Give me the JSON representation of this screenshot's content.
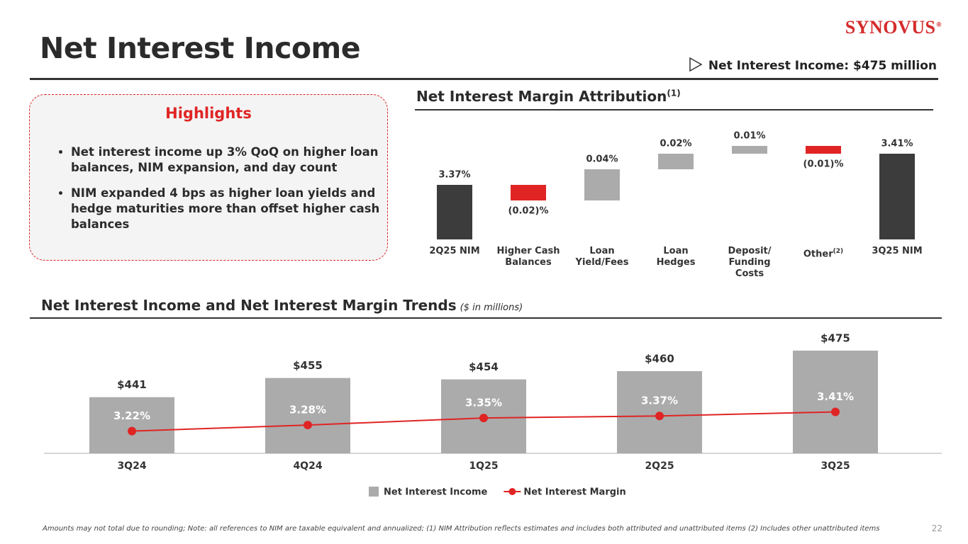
{
  "header": {
    "title": "Net Interest Income",
    "logo": "SYNOVUS",
    "logo_mark": "®",
    "callout": "Net Interest Income: $475 million"
  },
  "highlights": {
    "title": "Highlights",
    "bullets": [
      "Net interest income up 3% QoQ on higher loan balances, NIM expansion, and day count",
      "NIM expanded 4 bps as higher loan yields and hedge maturities more than offset higher cash balances"
    ]
  },
  "chart_data": [
    {
      "type": "waterfall",
      "title": "Net Interest Margin Attribution",
      "title_note": "(1)",
      "categories": [
        "2Q25 NIM",
        "Higher Cash\nBalances",
        "Loan\nYield/Fees",
        "Loan\nHedges",
        "Deposit/\nFunding\nCosts",
        "Other",
        "3Q25 NIM"
      ],
      "category_notes": {
        "5": "(2)"
      },
      "measure": [
        "absolute",
        "relative",
        "relative",
        "relative",
        "relative",
        "relative",
        "absolute"
      ],
      "values": [
        3.37,
        -0.02,
        0.04,
        0.02,
        0.01,
        -0.01,
        3.41
      ],
      "value_labels": [
        "3.37%",
        "(0.02)%",
        "0.04%",
        "0.02%",
        "0.01%",
        "(0.01)%",
        "3.41%"
      ],
      "total_color": "#3c3c3c",
      "increase_color": "#ababab",
      "decrease_color": "#e02424",
      "ylim": [
        3.3,
        3.43
      ]
    },
    {
      "type": "combo",
      "title": "Net Interest Income and Net Interest Margin Trends",
      "subtitle": "($ in millions)",
      "categories": [
        "3Q24",
        "4Q24",
        "1Q25",
        "2Q25",
        "3Q25"
      ],
      "series": [
        {
          "name": "Net Interest Income",
          "type": "bar",
          "color": "#ababab",
          "values": [
            441,
            455,
            454,
            460,
            475
          ],
          "value_labels": [
            "$441",
            "$455",
            "$454",
            "$460",
            "$475"
          ]
        },
        {
          "name": "Net Interest Margin",
          "type": "line",
          "axis": "y2",
          "color": "#e02424",
          "values": [
            3.22,
            3.28,
            3.35,
            3.37,
            3.41
          ],
          "value_labels": [
            "3.22%",
            "3.28%",
            "3.35%",
            "3.37%",
            "3.41%"
          ]
        }
      ],
      "ylim": [
        400,
        490
      ],
      "y2lim": [
        3.0,
        4.22
      ],
      "legend": "bottom"
    }
  ],
  "footnote": "Amounts may not total due to rounding; Note: all references to NIM are taxable equivalent and annualized; (1) NIM Attribution reflects estimates and includes both attributed and unattributed items (2) Includes other unattributed items",
  "page_number": "22"
}
